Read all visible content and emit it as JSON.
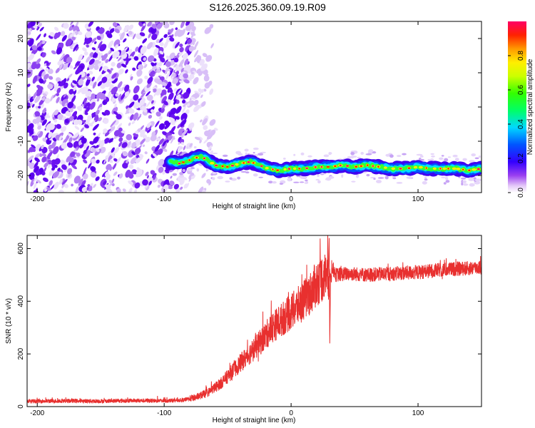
{
  "title": "S126.2025.360.09.19.R09",
  "chart_data": [
    {
      "type": "heatmap",
      "xlabel": "Height of straight line (km)",
      "ylabel": "Frequency (Hz)",
      "xlim": [
        -208,
        150
      ],
      "ylim": [
        -25,
        25
      ],
      "xticks": [
        -200,
        -100,
        0,
        100
      ],
      "yticks": [
        -20,
        -10,
        0,
        10,
        20
      ],
      "noise_region_x": [
        -208,
        -80
      ],
      "ridge": {
        "x": [
          -95,
          -88,
          -80,
          -72,
          -68,
          -60,
          -50,
          -40,
          -32,
          -25,
          -18,
          -10,
          0,
          10,
          20,
          30,
          40,
          50,
          60,
          70,
          80,
          90,
          100,
          110,
          120,
          130,
          140,
          150
        ],
        "freq": [
          -16,
          -16.5,
          -15.5,
          -14.5,
          -15,
          -17,
          -17.5,
          -16.5,
          -16,
          -17,
          -18,
          -18.5,
          -18,
          -18,
          -17.5,
          -17.5,
          -17,
          -17.5,
          -17,
          -17.5,
          -18,
          -18,
          -17.5,
          -18,
          -18,
          -18,
          -18.5,
          -18
        ]
      },
      "colorbar": {
        "label": "Normalized spectral amplitude",
        "range": [
          0,
          1
        ],
        "ticks": [
          "0.0",
          "0.2",
          "0.4",
          "0.6",
          "0.8"
        ]
      }
    },
    {
      "type": "line",
      "xlabel": "Height of straight line (km)",
      "ylabel": "SNR (10 * v/v)",
      "xlim": [
        -208,
        150
      ],
      "ylim": [
        0,
        650
      ],
      "xticks": [
        -200,
        -100,
        0,
        100
      ],
      "yticks": [
        0,
        200,
        400,
        600
      ],
      "series": [
        {
          "name": "SNR",
          "color": "#e8302f",
          "x": [
            -208,
            -180,
            -150,
            -120,
            -100,
            -85,
            -75,
            -65,
            -55,
            -45,
            -35,
            -25,
            -15,
            -5,
            5,
            15,
            22,
            28,
            30,
            35,
            45,
            60,
            80,
            100,
            120,
            140,
            150
          ],
          "y": [
            20,
            22,
            21,
            23,
            22,
            25,
            35,
            55,
            90,
            140,
            190,
            240,
            300,
            340,
            380,
            430,
            480,
            500,
            560,
            500,
            505,
            500,
            505,
            510,
            520,
            525,
            530
          ],
          "spike": {
            "x": 30,
            "max": 640,
            "min": 240
          }
        }
      ]
    }
  ]
}
